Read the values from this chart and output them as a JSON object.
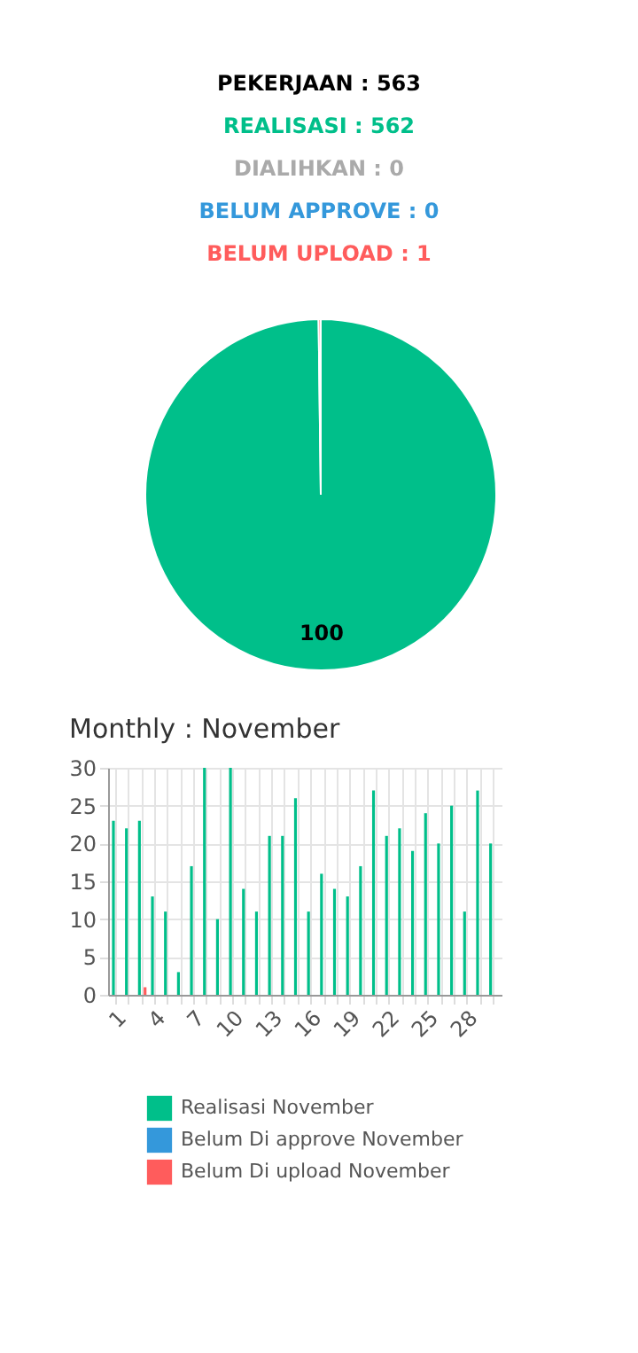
{
  "chart_data": [
    {
      "type": "pie",
      "title": "PEKERJAAN : 563",
      "annotations": [
        "REALISASI : 562",
        "DIALIHKAN : 0",
        "BELUM APPROVE : 0",
        "BELUM UPLOAD : 1"
      ],
      "categories": [
        null,
        null
      ],
      "values": [
        99.8,
        0.2
      ],
      "colors": [
        "#00bf8a",
        "#ff5c5c"
      ],
      "value_labels": [
        "100",
        null
      ],
      "legend": false
    },
    {
      "type": "bar",
      "title": "Monthly : November",
      "categories": [
        "1",
        null,
        null,
        "4",
        null,
        null,
        "7",
        null,
        null,
        "10",
        null,
        null,
        "13",
        null,
        null,
        "16",
        null,
        null,
        "19",
        null,
        null,
        "22",
        null,
        null,
        "25",
        null,
        null,
        "28",
        null,
        null
      ],
      "series": [
        {
          "name": "Realisasi November",
          "color": "#00bf8a",
          "values": [
            23,
            22,
            23,
            13,
            11,
            3,
            17,
            30,
            10,
            30,
            14,
            11,
            21,
            21,
            26,
            11,
            16,
            14,
            13,
            17,
            27,
            21,
            22,
            19,
            24,
            20,
            25,
            11,
            27,
            20
          ]
        },
        {
          "name": "Belum Di approve November",
          "color": "#3498db",
          "values": [
            0,
            0,
            0,
            0,
            0,
            0,
            0,
            0,
            0,
            0,
            0,
            0,
            0,
            0,
            0,
            0,
            0,
            0,
            0,
            0,
            0,
            0,
            0,
            0,
            0,
            0,
            0,
            0,
            0,
            0
          ]
        },
        {
          "name": "Belum Di upload November",
          "color": "#ff5c5c",
          "values": [
            0,
            0,
            1,
            0,
            0,
            0,
            0,
            0,
            0,
            0,
            0,
            0,
            0,
            0,
            0,
            0,
            0,
            0,
            0,
            0,
            0,
            0,
            0,
            0,
            0,
            0,
            0,
            0,
            0,
            0
          ]
        }
      ],
      "ylim": [
        0,
        30
      ],
      "yticks": [
        0,
        5,
        10,
        15,
        20,
        25,
        30
      ],
      "grid": true,
      "legend": "bottom"
    }
  ]
}
